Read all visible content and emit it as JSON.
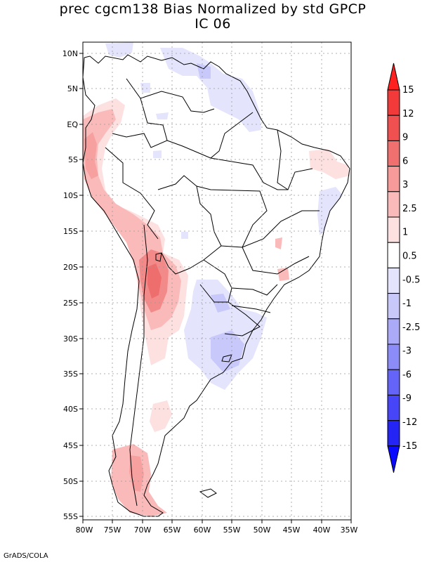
{
  "title": {
    "line1": "prec cgcm138 Bias Normalized by std GPCP",
    "line2": "IC 06"
  },
  "credit": "GrADS/COLA",
  "map": {
    "lat_ticks": [
      "10N",
      "5N",
      "EQ",
      "5S",
      "10S",
      "15S",
      "20S",
      "25S",
      "30S",
      "35S",
      "40S",
      "45S",
      "50S",
      "55S"
    ],
    "lon_ticks": [
      "80W",
      "75W",
      "70W",
      "65W",
      "60W",
      "55W",
      "50W",
      "45W",
      "40W",
      "35W"
    ],
    "lat_range": [
      11.5,
      -56.0
    ],
    "lon_range": [
      -80,
      -35
    ]
  },
  "colorbar": {
    "labels": [
      "15",
      "12",
      "9",
      "6",
      "3",
      "2.5",
      "1",
      "0.5",
      "-0.5",
      "-1",
      "-2.5",
      "-3",
      "-6",
      "-9",
      "-12",
      "-15"
    ],
    "colors": [
      "#ff2020",
      "#f23a3a",
      "#f05050",
      "#f07070",
      "#f79a9a",
      "#fbbaba",
      "#fde0e0",
      "#ffffff",
      "#e4e4fd",
      "#c8c8fa",
      "#aaaaf8",
      "#8c8cf8",
      "#6464f8",
      "#4646f8",
      "#2424f4",
      "#0a0aff"
    ]
  }
}
